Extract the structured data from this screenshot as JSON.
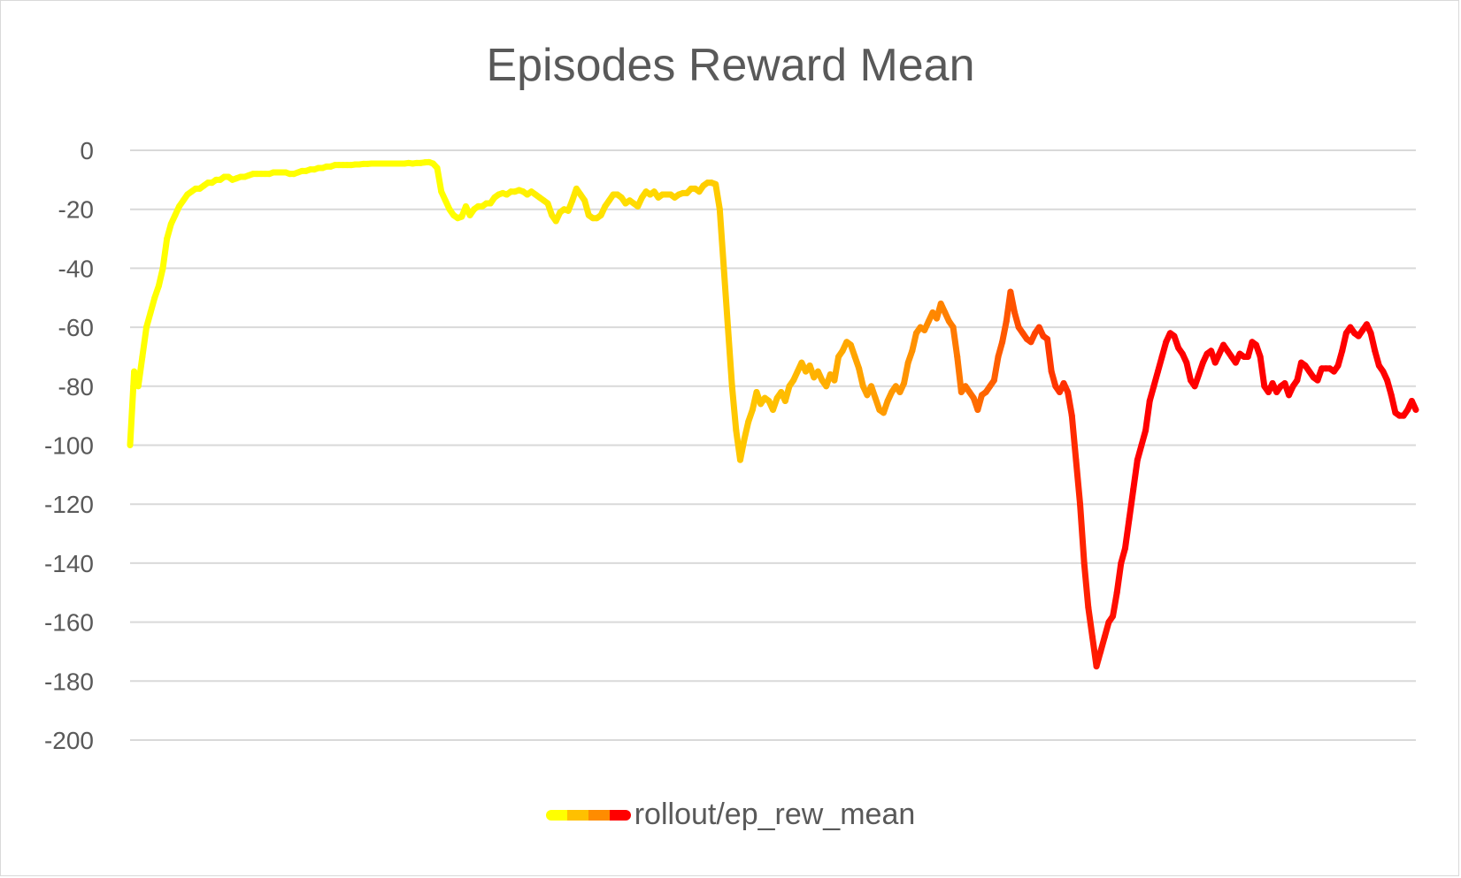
{
  "chart_data": {
    "type": "line",
    "title": "Episodes Reward Mean",
    "xlabel": "",
    "ylabel": "",
    "ylim": [
      -200,
      0
    ],
    "yticks": [
      0,
      -20,
      -40,
      -60,
      -80,
      -100,
      -120,
      -140,
      -160,
      -180,
      -200
    ],
    "grid": true,
    "legend_position": "bottom",
    "series": [
      {
        "name": "rollout/ep_rew_mean",
        "colors": [
          "#ffff00",
          "#ffc000",
          "#ff8c00",
          "#ff0000"
        ],
        "y": [
          -100,
          -75,
          -80,
          -70,
          -60,
          -55,
          -50,
          -46,
          -40,
          -30,
          -25,
          -22,
          -19,
          -17,
          -15,
          -14,
          -13,
          -13,
          -12,
          -11,
          -11,
          -10,
          -10,
          -9,
          -9,
          -10,
          -9.5,
          -9,
          -9,
          -8.5,
          -8,
          -8,
          -8,
          -8,
          -8,
          -7.5,
          -7.5,
          -7.5,
          -7.5,
          -8,
          -8,
          -7.5,
          -7,
          -7,
          -6.5,
          -6.5,
          -6,
          -6,
          -5.5,
          -5.5,
          -5,
          -5,
          -5,
          -5,
          -5,
          -4.8,
          -4.8,
          -4.6,
          -4.6,
          -4.5,
          -4.5,
          -4.5,
          -4.5,
          -4.5,
          -4.5,
          -4.5,
          -4.5,
          -4.5,
          -4.3,
          -4.5,
          -4.3,
          -4.3,
          -4.1,
          -4,
          -4.5,
          -6,
          -14,
          -17,
          -20,
          -22,
          -23,
          -22.5,
          -19,
          -22,
          -20,
          -19,
          -19,
          -18,
          -18,
          -16,
          -15,
          -14.5,
          -15,
          -14,
          -14,
          -13.5,
          -14,
          -15,
          -14,
          -15,
          -16,
          -17,
          -18,
          -22,
          -24,
          -21,
          -20,
          -20.5,
          -17,
          -13,
          -15,
          -17,
          -22,
          -23,
          -23,
          -22,
          -19,
          -17,
          -15,
          -15,
          -16,
          -18,
          -17,
          -18,
          -19,
          -16,
          -14,
          -15,
          -14,
          -16,
          -15,
          -15,
          -15,
          -16,
          -15,
          -14.5,
          -14.5,
          -13,
          -13,
          -14,
          -12,
          -11,
          -11,
          -11.5,
          -20,
          -40,
          -60,
          -80,
          -95,
          -105,
          -98,
          -92,
          -88,
          -82,
          -86,
          -84,
          -85,
          -88,
          -84,
          -82,
          -85,
          -80,
          -78,
          -75,
          -72,
          -75,
          -73,
          -77,
          -75,
          -78,
          -80,
          -76,
          -78,
          -70,
          -68,
          -65,
          -66,
          -70,
          -74,
          -80,
          -83,
          -80,
          -84,
          -88,
          -89,
          -85,
          -82,
          -80,
          -82,
          -79,
          -72,
          -68,
          -62,
          -60,
          -61,
          -58,
          -55,
          -57,
          -52,
          -55,
          -58,
          -60,
          -70,
          -82,
          -80,
          -82,
          -84,
          -88,
          -83,
          -82,
          -80,
          -78,
          -70,
          -65,
          -58,
          -48,
          -55,
          -60,
          -62,
          -64,
          -65,
          -62,
          -60,
          -63,
          -64,
          -75,
          -80,
          -82,
          -79,
          -82,
          -90,
          -105,
          -120,
          -140,
          -155,
          -165,
          -175,
          -170,
          -165,
          -160,
          -158,
          -150,
          -140,
          -135,
          -125,
          -115,
          -105,
          -100,
          -95,
          -85,
          -80,
          -75,
          -70,
          -65,
          -62,
          -63,
          -67,
          -69,
          -72,
          -78,
          -80,
          -76,
          -72,
          -69,
          -68,
          -72,
          -69,
          -66,
          -68,
          -70,
          -72,
          -69,
          -70,
          -70,
          -65,
          -66,
          -70,
          -80,
          -82,
          -79,
          -82,
          -80,
          -79,
          -83,
          -80,
          -78,
          -72,
          -73,
          -75,
          -77,
          -78,
          -74,
          -74,
          -74,
          -75,
          -73,
          -68,
          -62,
          -60,
          -62,
          -63,
          -61,
          -59,
          -62,
          -68,
          -73,
          -75,
          -78,
          -83,
          -89,
          -90,
          -90,
          -88,
          -85,
          -88
        ]
      }
    ]
  }
}
